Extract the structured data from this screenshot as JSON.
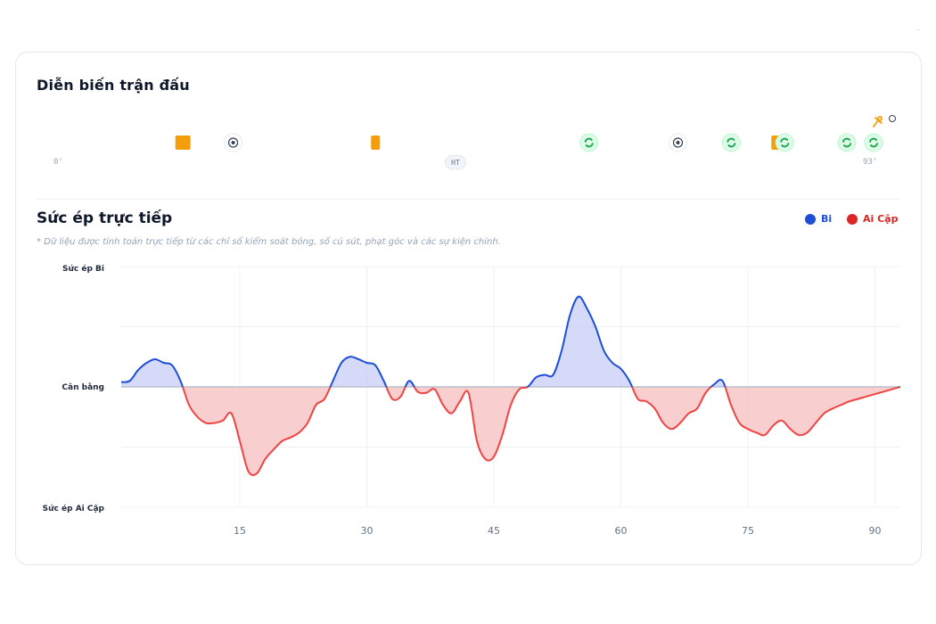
{
  "match_timeline": {
    "title": "Diễn biến trận đấu",
    "start_label": "0'",
    "half_time_label": "HT",
    "end_label": "93'",
    "max_minute": 93,
    "events": [
      {
        "minute": 14,
        "type": "yellow-card"
      },
      {
        "minute": 20,
        "type": "goal"
      },
      {
        "minute": 36,
        "type": "yellow-card"
      },
      {
        "minute": 60,
        "type": "substitution"
      },
      {
        "minute": 70,
        "type": "goal"
      },
      {
        "minute": 76,
        "type": "substitution"
      },
      {
        "minute": 81,
        "type": "yellow-card"
      },
      {
        "minute": 82,
        "type": "substitution"
      },
      {
        "minute": 92,
        "type": "substitution"
      },
      {
        "minute": 95,
        "type": "substitution"
      }
    ],
    "colors": {
      "start": "#60a5fa",
      "middle": "#6366f1",
      "mid2": "#a855f7",
      "end": "#ef4444"
    }
  },
  "pressure": {
    "title": "Sức ép trực tiếp",
    "note": "* Dữ liệu được tính toán trực tiếp từ các chỉ số kiểm soát bóng, số cú sút, phạt góc và các sự kiện chính.",
    "legend": [
      {
        "name": "Bi",
        "color": "#1d4ed8"
      },
      {
        "name": "Ai Cập",
        "color": "#dc2626"
      }
    ]
  },
  "chart_data": {
    "type": "area",
    "title": "Sức ép trực tiếp",
    "xlim": [
      1,
      93
    ],
    "ylim": [
      -100,
      100
    ],
    "x_ticks": [
      15,
      30,
      45,
      60,
      75,
      90
    ],
    "y_tick_labels": [
      "Sức ép Bi",
      "Cân bằng",
      "Sức ép Ai Cập"
    ],
    "colors": {
      "home": "#1d4ed8",
      "away": "#ef4444",
      "home_fill": "#c7cdf5",
      "away_fill": "#f7c6c6"
    },
    "x": [
      1,
      2,
      3,
      4,
      5,
      6,
      7,
      8,
      9,
      10,
      11,
      12,
      13,
      14,
      15,
      16,
      17,
      18,
      19,
      20,
      21,
      22,
      23,
      24,
      25,
      26,
      27,
      28,
      29,
      30,
      31,
      32,
      33,
      34,
      35,
      36,
      37,
      38,
      39,
      40,
      41,
      42,
      43,
      44,
      45,
      46,
      47,
      48,
      49,
      50,
      51,
      52,
      53,
      54,
      55,
      56,
      57,
      58,
      59,
      60,
      61,
      62,
      63,
      64,
      65,
      66,
      67,
      68,
      69,
      70,
      71,
      72,
      73,
      74,
      75,
      76,
      77,
      78,
      79,
      80,
      81,
      82,
      83,
      84,
      85,
      86,
      87,
      88,
      89,
      90,
      91,
      92,
      93
    ],
    "values": [
      4,
      5,
      14,
      20,
      23,
      20,
      18,
      5,
      -15,
      -25,
      -30,
      -30,
      -28,
      -22,
      -45,
      -70,
      -72,
      -60,
      -52,
      -45,
      -42,
      -38,
      -30,
      -15,
      -10,
      5,
      20,
      25,
      23,
      20,
      18,
      5,
      -10,
      -8,
      5,
      -4,
      -5,
      -2,
      -15,
      -22,
      -12,
      -5,
      -45,
      -60,
      -58,
      -40,
      -15,
      -2,
      0,
      8,
      10,
      10,
      30,
      60,
      75,
      65,
      50,
      30,
      20,
      15,
      5,
      -10,
      -12,
      -18,
      -30,
      -35,
      -30,
      -22,
      -18,
      -5,
      2,
      5,
      -15,
      -30,
      -35,
      -38,
      -40,
      -32,
      -28,
      -35,
      -40,
      -38,
      -30,
      -22,
      -18,
      -15,
      -12,
      -10,
      -8,
      -6,
      -4,
      -2,
      0
    ]
  }
}
